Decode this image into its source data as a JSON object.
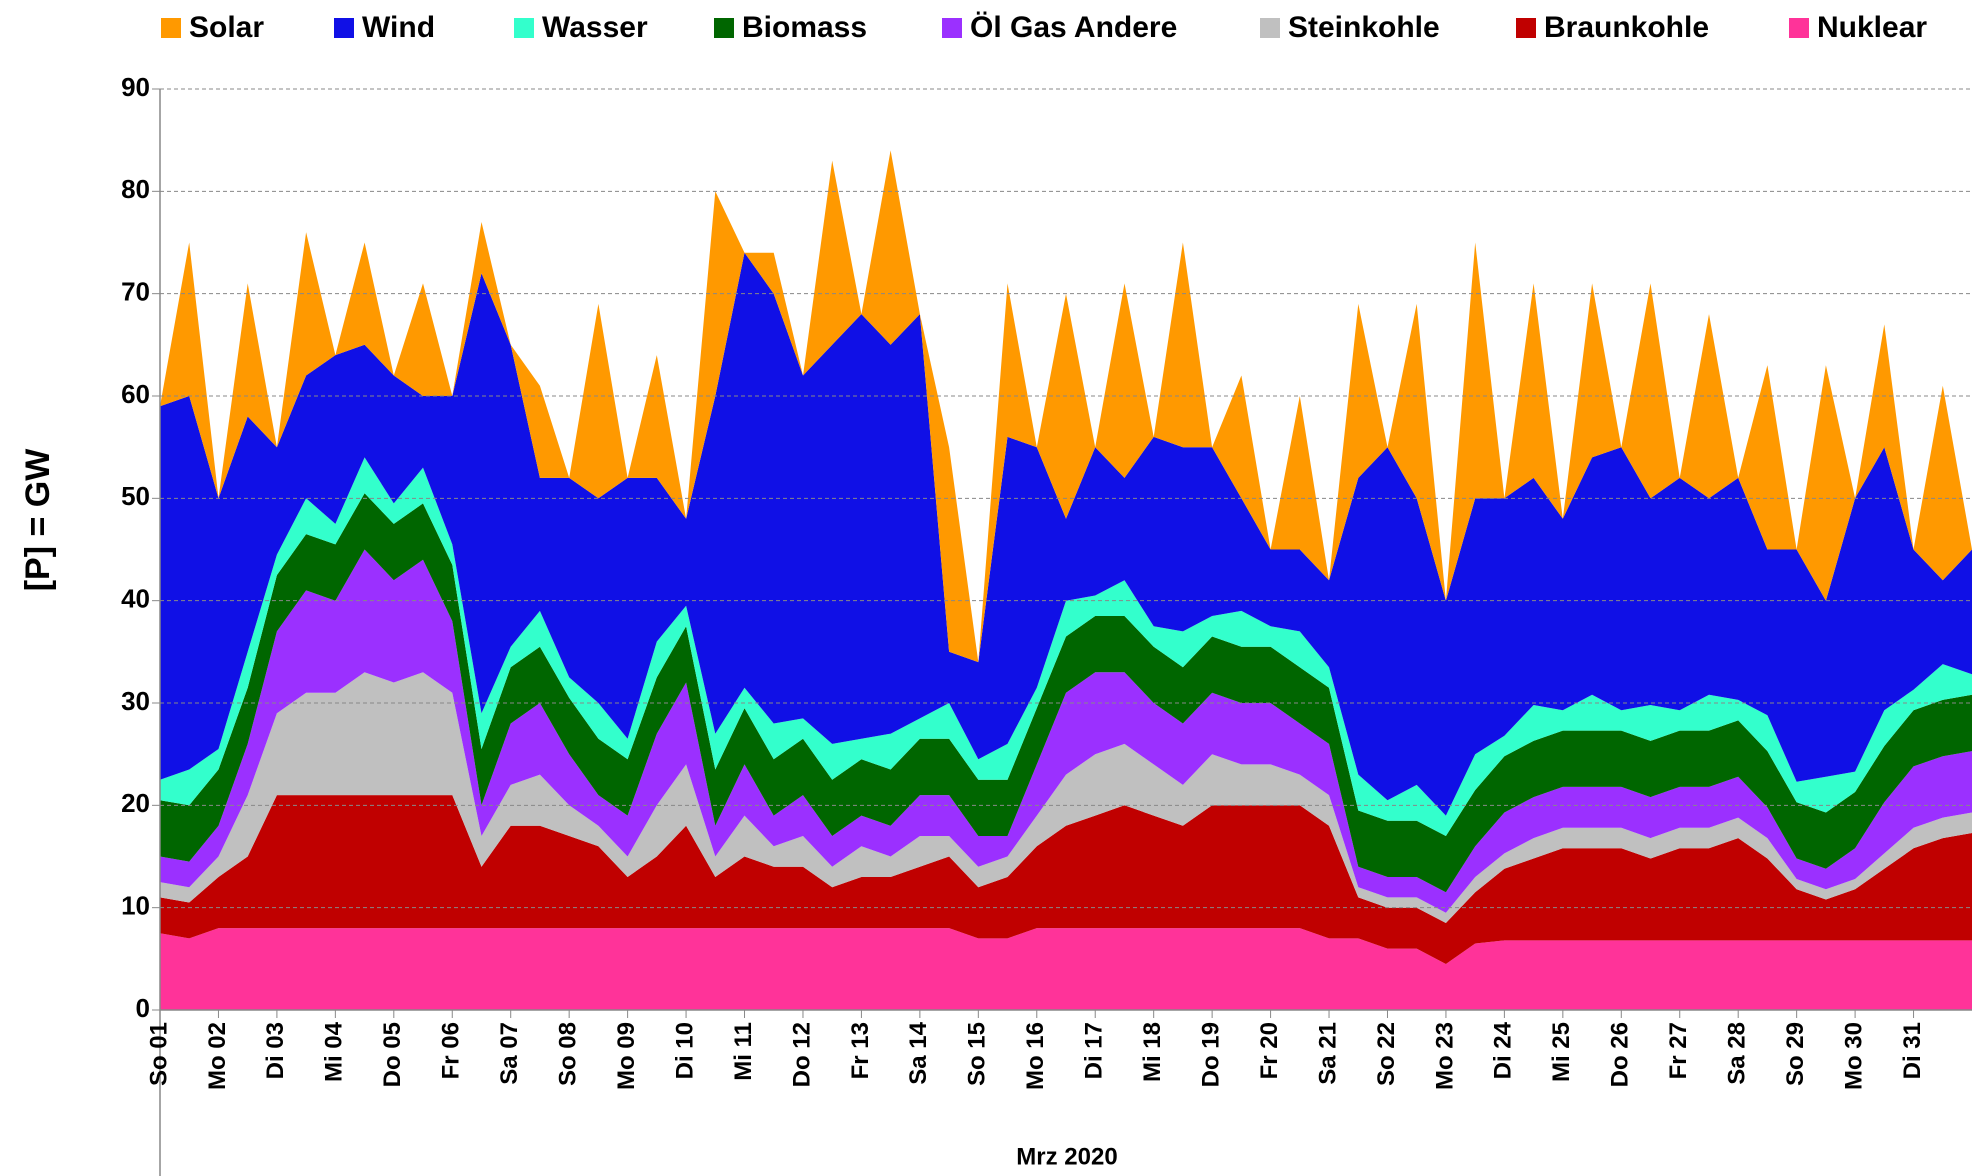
{
  "chart_data": {
    "type": "stacked-area",
    "y_label": "[P] = GW",
    "x_label": "Mrz 2020",
    "ylim": [
      0,
      90
    ],
    "yticks": [
      0,
      10,
      20,
      30,
      40,
      50,
      60,
      70,
      80,
      90
    ],
    "grid": true,
    "legend": "top",
    "xlim": [
      0,
      744
    ],
    "xticks": [
      {
        "value": 0,
        "label": "So 01"
      },
      {
        "value": 24,
        "label": "Mo 02"
      },
      {
        "value": 48,
        "label": "Di 03"
      },
      {
        "value": 72,
        "label": "Mi 04"
      },
      {
        "value": 96,
        "label": "Do 05"
      },
      {
        "value": 120,
        "label": "Fr 06"
      },
      {
        "value": 144,
        "label": "Sa 07"
      },
      {
        "value": 168,
        "label": "So 08"
      },
      {
        "value": 192,
        "label": "Mo 09"
      },
      {
        "value": 216,
        "label": "Di 10"
      },
      {
        "value": 240,
        "label": "Mi 11"
      },
      {
        "value": 264,
        "label": "Do 12"
      },
      {
        "value": 288,
        "label": "Fr 13"
      },
      {
        "value": 312,
        "label": "Sa 14"
      },
      {
        "value": 336,
        "label": "So 15"
      },
      {
        "value": 360,
        "label": "Mo 16"
      },
      {
        "value": 384,
        "label": "Di 17"
      },
      {
        "value": 408,
        "label": "Mi 18"
      },
      {
        "value": 432,
        "label": "Do 19"
      },
      {
        "value": 456,
        "label": "Fr 20"
      },
      {
        "value": 480,
        "label": "Sa 21"
      },
      {
        "value": 504,
        "label": "So 22"
      },
      {
        "value": 528,
        "label": "Mo 23"
      },
      {
        "value": 552,
        "label": "Di 24"
      },
      {
        "value": 576,
        "label": "Mi 25"
      },
      {
        "value": 600,
        "label": "Do 26"
      },
      {
        "value": 624,
        "label": "Fr 27"
      },
      {
        "value": 648,
        "label": "Sa 28"
      },
      {
        "value": 672,
        "label": "So 29"
      },
      {
        "value": 696,
        "label": "Mo 30"
      },
      {
        "value": 720,
        "label": "Di 31"
      }
    ],
    "x": [
      0,
      12,
      24,
      36,
      48,
      60,
      72,
      84,
      96,
      108,
      120,
      132,
      144,
      156,
      168,
      180,
      192,
      204,
      216,
      228,
      240,
      252,
      264,
      276,
      288,
      300,
      312,
      324,
      336,
      348,
      360,
      372,
      384,
      396,
      408,
      420,
      432,
      444,
      456,
      468,
      480,
      492,
      504,
      516,
      528,
      540,
      552,
      564,
      576,
      588,
      600,
      612,
      624,
      636,
      648,
      660,
      672,
      684,
      696,
      708,
      720,
      732,
      744
    ],
    "series": [
      {
        "name": "Solar",
        "color": "#ff9900",
        "values": [
          0,
          15,
          0,
          13,
          0,
          14,
          0,
          10,
          0,
          11,
          0,
          5,
          0,
          9,
          0,
          19,
          0,
          12,
          0,
          20,
          0,
          4,
          0,
          18,
          0,
          19,
          0,
          20,
          0,
          15,
          0,
          22,
          0,
          19,
          0,
          20,
          0,
          12,
          0,
          15,
          0,
          17,
          0,
          19,
          0,
          25,
          0,
          19,
          0,
          17,
          0,
          21,
          0,
          18,
          0,
          18,
          0,
          23,
          0,
          12,
          0,
          19,
          0
        ]
      },
      {
        "name": "Wind",
        "color": "#1010e6",
        "values": [
          36.5,
          36.5,
          24.5,
          23,
          10.5,
          12,
          16.5,
          11,
          12.5,
          7,
          14.5,
          43,
          29.5,
          13,
          19.5,
          20,
          25.5,
          16,
          8.5,
          33,
          42.5,
          42,
          33.5,
          39,
          41.5,
          38,
          39.5,
          5,
          9.5,
          30,
          23.5,
          8,
          14.5,
          10,
          18.5,
          18,
          16.5,
          11,
          7.5,
          8,
          8.5,
          29,
          34.5,
          28,
          21,
          25,
          23.2,
          22.2,
          18.7,
          23.2,
          25.7,
          20.2,
          22.7,
          19.2,
          21.7,
          16.2,
          22.7,
          17.2,
          26.7,
          25.7,
          13.7,
          8.2,
          12.2
        ]
      },
      {
        "name": "Wasser",
        "color": "#33ffcc",
        "values": [
          2,
          3.5,
          2,
          3.5,
          2,
          3.5,
          2,
          3.5,
          2,
          3.5,
          2,
          3.5,
          2,
          3.5,
          2,
          3.5,
          2,
          3.5,
          2,
          3.5,
          2,
          3.5,
          2,
          3.5,
          2,
          3.5,
          2,
          3.5,
          2,
          3.5,
          2,
          3.5,
          2,
          3.5,
          2,
          3.5,
          2,
          3.5,
          2,
          3.5,
          2,
          3.5,
          2,
          3.5,
          2,
          3.5,
          2,
          3.5,
          2,
          3.5,
          2,
          3.5,
          2,
          3.5,
          2,
          3.5,
          2,
          3.5,
          2,
          3.5,
          2,
          3.5,
          2
        ]
      },
      {
        "name": "Biomass",
        "color": "#006600",
        "values": [
          5.5,
          5.5,
          5.5,
          5.5,
          5.5,
          5.5,
          5.5,
          5.5,
          5.5,
          5.5,
          5.5,
          5.5,
          5.5,
          5.5,
          5.5,
          5.5,
          5.5,
          5.5,
          5.5,
          5.5,
          5.5,
          5.5,
          5.5,
          5.5,
          5.5,
          5.5,
          5.5,
          5.5,
          5.5,
          5.5,
          5.5,
          5.5,
          5.5,
          5.5,
          5.5,
          5.5,
          5.5,
          5.5,
          5.5,
          5.5,
          5.5,
          5.5,
          5.5,
          5.5,
          5.5,
          5.5,
          5.5,
          5.5,
          5.5,
          5.5,
          5.5,
          5.5,
          5.5,
          5.5,
          5.5,
          5.5,
          5.5,
          5.5,
          5.5,
          5.5,
          5.5,
          5.5,
          5.5
        ]
      },
      {
        "name": "Öl Gas Andere",
        "color": "#9b30ff",
        "values": [
          2.5,
          2.5,
          3,
          5,
          8,
          10,
          9,
          12,
          10,
          11,
          7,
          3,
          6,
          7,
          5,
          3,
          4,
          7,
          8,
          3,
          5,
          3,
          4,
          3,
          3,
          3,
          4,
          4,
          3,
          2,
          5,
          8,
          8,
          7,
          6,
          6,
          6,
          6,
          6,
          5,
          5,
          2,
          2,
          2,
          2,
          3,
          4,
          4,
          4,
          4,
          4,
          4,
          4,
          4,
          4,
          3,
          2,
          2,
          3,
          5,
          6,
          6,
          6
        ]
      },
      {
        "name": "Steinkohle",
        "color": "#c0c0c0",
        "values": [
          1.5,
          1.5,
          2,
          6,
          8,
          10,
          10,
          12,
          11,
          12,
          10,
          3,
          4,
          5,
          3,
          2,
          2,
          5,
          6,
          2,
          4,
          2,
          3,
          2,
          3,
          2,
          3,
          2,
          2,
          2,
          3,
          5,
          6,
          6,
          5,
          4,
          5,
          4,
          4,
          3,
          3,
          1,
          1,
          1,
          1,
          1.5,
          1.5,
          2,
          2,
          2,
          2,
          2,
          2,
          2,
          2,
          2,
          1,
          1,
          1,
          1.5,
          2,
          2,
          2
        ]
      },
      {
        "name": "Braunkohle",
        "color": "#c00000",
        "values": [
          3.5,
          3.5,
          5,
          7,
          13,
          13,
          13,
          13,
          13,
          13,
          13,
          6,
          10,
          10,
          9,
          8,
          5,
          7,
          10,
          5,
          7,
          6,
          6,
          4,
          5,
          5,
          6,
          7,
          5,
          6,
          8,
          10,
          11,
          12,
          11,
          10,
          12,
          12,
          12,
          12,
          11,
          4,
          4,
          4,
          4,
          5,
          7,
          8,
          9,
          9,
          9,
          8,
          9,
          9,
          10,
          8,
          5,
          4,
          5,
          7,
          9,
          10,
          10.5
        ]
      },
      {
        "name": "Nuklear",
        "color": "#ff3399",
        "values": [
          7.5,
          7,
          8,
          8,
          8,
          8,
          8,
          8,
          8,
          8,
          8,
          8,
          8,
          8,
          8,
          8,
          8,
          8,
          8,
          8,
          8,
          8,
          8,
          8,
          8,
          8,
          8,
          8,
          7,
          7,
          8,
          8,
          8,
          8,
          8,
          8,
          8,
          8,
          8,
          8,
          7,
          7,
          6,
          6,
          4.5,
          6.5,
          6.8,
          6.8,
          6.8,
          6.8,
          6.8,
          6.8,
          6.8,
          6.8,
          6.8,
          6.8,
          6.8,
          6.8,
          6.8,
          6.8,
          6.8,
          6.8,
          6.8
        ]
      }
    ]
  }
}
